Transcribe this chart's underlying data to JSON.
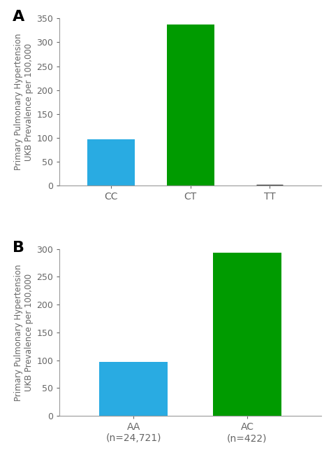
{
  "panel_A": {
    "categories": [
      "CC",
      "CT",
      "TT"
    ],
    "values": [
      97,
      338,
      2
    ],
    "colors": [
      "#29ABE2",
      "#009B00",
      null
    ],
    "has_line": [
      false,
      false,
      true
    ],
    "ylim": [
      0,
      350
    ],
    "yticks": [
      0,
      50,
      100,
      150,
      200,
      250,
      300,
      350
    ],
    "ylabel_line1": "Primary Pulmonary Hypertension",
    "ylabel_line2": "UKB Prevalence per 100,000",
    "panel_label": "A"
  },
  "panel_B": {
    "categories_line1": [
      "AA",
      "AC"
    ],
    "categories_line2": [
      "(n=24,721)",
      "(n=422)"
    ],
    "values": [
      97,
      293
    ],
    "colors": [
      "#29ABE2",
      "#009B00"
    ],
    "ylim": [
      0,
      300
    ],
    "yticks": [
      0,
      50,
      100,
      150,
      200,
      250,
      300
    ],
    "ylabel_line1": "Primary Pulmonary Hypertension",
    "ylabel_line2": "UKB Prevalence per 100,000",
    "panel_label": "B"
  },
  "bar_width": 0.6,
  "bg_color": "#ffffff",
  "spine_color": "#999999",
  "tick_color": "#666666",
  "tick_label_fontsize": 10,
  "ylabel_fontsize": 8.5,
  "panel_label_fontsize": 16
}
